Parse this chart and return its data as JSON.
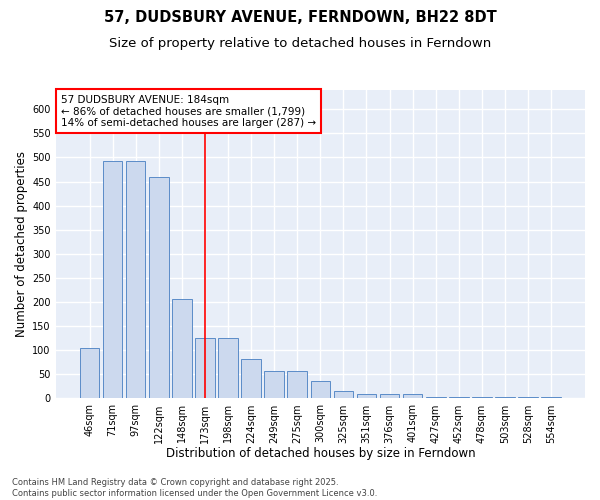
{
  "title": "57, DUDSBURY AVENUE, FERNDOWN, BH22 8DT",
  "subtitle": "Size of property relative to detached houses in Ferndown",
  "xlabel": "Distribution of detached houses by size in Ferndown",
  "ylabel": "Number of detached properties",
  "categories": [
    "46sqm",
    "71sqm",
    "97sqm",
    "122sqm",
    "148sqm",
    "173sqm",
    "198sqm",
    "224sqm",
    "249sqm",
    "275sqm",
    "300sqm",
    "325sqm",
    "351sqm",
    "376sqm",
    "401sqm",
    "427sqm",
    "452sqm",
    "478sqm",
    "503sqm",
    "528sqm",
    "554sqm"
  ],
  "values": [
    105,
    492,
    492,
    460,
    207,
    125,
    125,
    82,
    58,
    58,
    37,
    15,
    10,
    10,
    10,
    4,
    4,
    4,
    4,
    4,
    4
  ],
  "bar_color": "#ccd9ee",
  "bar_edge_color": "#5b8cc8",
  "vline_x": 5,
  "vline_color": "red",
  "annotation_box_text": "57 DUDSBURY AVENUE: 184sqm\n← 86% of detached houses are smaller (1,799)\n14% of semi-detached houses are larger (287) →",
  "annotation_box_color": "red",
  "annotation_box_facecolor": "white",
  "ylim": [
    0,
    640
  ],
  "yticks": [
    0,
    50,
    100,
    150,
    200,
    250,
    300,
    350,
    400,
    450,
    500,
    550,
    600
  ],
  "footer_text": "Contains HM Land Registry data © Crown copyright and database right 2025.\nContains public sector information licensed under the Open Government Licence v3.0.",
  "bg_color": "#e8eef8",
  "grid_color": "white",
  "title_fontsize": 10.5,
  "subtitle_fontsize": 9.5,
  "axis_label_fontsize": 8.5,
  "tick_fontsize": 7,
  "annotation_fontsize": 7.5,
  "footer_fontsize": 6
}
